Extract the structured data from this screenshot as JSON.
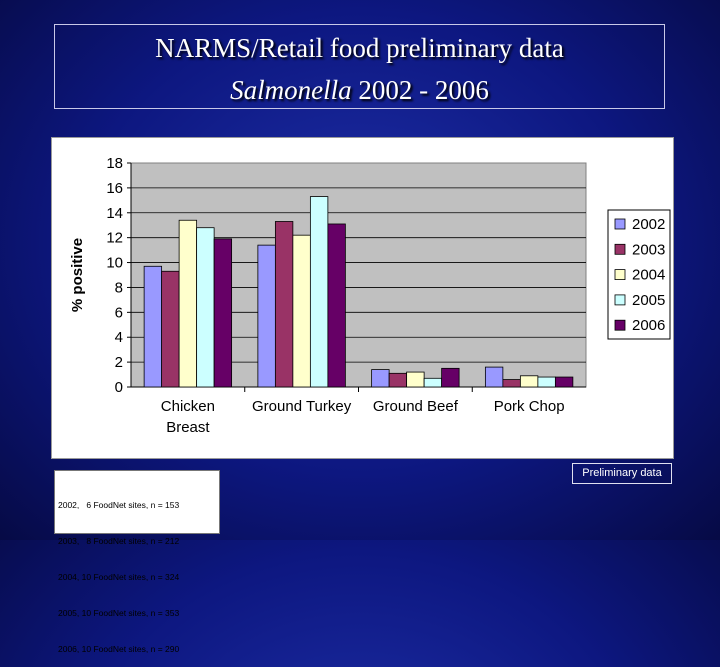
{
  "title": {
    "line1": "NARMS/Retail food preliminary data",
    "line2_italic": "Salmonella",
    "line2_rest": " 2002 - 2006"
  },
  "chart_data": {
    "type": "bar",
    "categories": [
      "Chicken Breast",
      "Ground Turkey",
      "Ground Beef",
      "Pork Chop"
    ],
    "category_lines": [
      [
        "Chicken",
        "Breast"
      ],
      [
        "Ground Turkey"
      ],
      [
        "Ground Beef"
      ],
      [
        "Pork Chop"
      ]
    ],
    "series": [
      {
        "name": "2002",
        "color": "#9999ff",
        "values": [
          9.7,
          11.4,
          1.4,
          1.6
        ]
      },
      {
        "name": "2003",
        "color": "#993366",
        "values": [
          9.3,
          13.3,
          1.1,
          0.6
        ]
      },
      {
        "name": "2004",
        "color": "#ffffcc",
        "values": [
          13.4,
          12.2,
          1.2,
          0.9
        ]
      },
      {
        "name": "2005",
        "color": "#ccffff",
        "values": [
          12.8,
          15.3,
          0.7,
          0.8
        ]
      },
      {
        "name": "2006",
        "color": "#660066",
        "values": [
          11.9,
          13.1,
          1.5,
          0.8
        ]
      }
    ],
    "ylabel": "% positive",
    "xlabel": "",
    "ylim": [
      0,
      18
    ],
    "yticks": [
      "0",
      "2",
      "4",
      "6",
      "8",
      "10",
      "12",
      "14",
      "16",
      "18"
    ],
    "grid": true,
    "plot_background": "#c0c0c0",
    "legend_position": "right"
  },
  "notes": [
    "2002,   6 FoodNet sites, n = 153",
    "2003,   8 FoodNet sites, n = 212",
    "2004, 10 FoodNet sites, n = 324",
    "2005, 10 FoodNet sites, n = 353",
    "2006, 10 FoodNet sites, n = 290"
  ],
  "preliminary_label": "Preliminary data"
}
